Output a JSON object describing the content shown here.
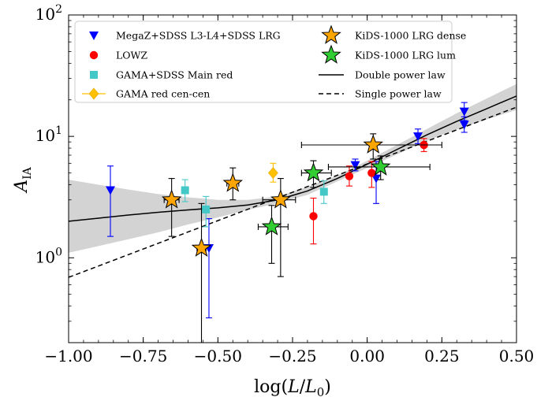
{
  "chart_data": {
    "type": "scatter",
    "title": "",
    "xlabel": "log(L/L_0)",
    "ylabel": "A_IA",
    "xlim": [
      -1.0,
      0.5
    ],
    "ylim": [
      0.2,
      100
    ],
    "yscale": "log",
    "grid": false,
    "legend_position": "top-left",
    "x_ticks": [
      -1.0,
      -0.75,
      -0.5,
      -0.25,
      0.0,
      0.25,
      0.5
    ],
    "x_tick_labels": [
      "−1.00",
      "−0.75",
      "−0.50",
      "−0.25",
      "0.00",
      "0.25",
      "0.50"
    ],
    "y_ticks": [
      {
        "value": 1,
        "base": "10",
        "exp": "0"
      },
      {
        "value": 10,
        "base": "10",
        "exp": "1"
      },
      {
        "value": 100,
        "base": "10",
        "exp": "2"
      }
    ],
    "series": [
      {
        "name": "MegaZ+SDSS L3-L4+SDSS LRG",
        "marker": "triangle-down",
        "color": "#0000ff",
        "points": [
          {
            "x": -0.86,
            "y": 3.6,
            "ylo": 1.5,
            "yhi": 5.7
          },
          {
            "x": -0.53,
            "y": 1.2,
            "ylo": 0.32,
            "yhi": 2.1
          },
          {
            "x": -0.04,
            "y": 5.8,
            "ylo": 5.2,
            "yhi": 6.5
          },
          {
            "x": 0.03,
            "y": 4.5,
            "ylo": 2.8,
            "yhi": 6.2
          },
          {
            "x": 0.17,
            "y": 10.0,
            "ylo": 8.7,
            "yhi": 11.5
          },
          {
            "x": 0.325,
            "y": 16.0,
            "ylo": 13.5,
            "yhi": 19.0
          },
          {
            "x": 0.325,
            "y": 12.5,
            "ylo": 10.8,
            "yhi": 14.5
          }
        ]
      },
      {
        "name": "LOWZ",
        "marker": "circle",
        "color": "#ff0000",
        "points": [
          {
            "x": -0.18,
            "y": 2.2,
            "ylo": 1.3,
            "yhi": 3.1
          },
          {
            "x": -0.06,
            "y": 4.7,
            "ylo": 3.9,
            "yhi": 5.7
          },
          {
            "x": 0.015,
            "y": 5.0,
            "ylo": 3.8,
            "yhi": 6.2
          },
          {
            "x": 0.19,
            "y": 8.5,
            "ylo": 7.5,
            "yhi": 9.6
          }
        ]
      },
      {
        "name": "GAMA+SDSS Main red",
        "marker": "square",
        "color": "#44c7c7",
        "points": [
          {
            "x": -0.61,
            "y": 3.6,
            "ylo": 2.9,
            "yhi": 4.4
          },
          {
            "x": -0.54,
            "y": 2.5,
            "ylo": 1.8,
            "yhi": 3.2
          },
          {
            "x": -0.145,
            "y": 3.5,
            "ylo": 2.8,
            "yhi": 4.3
          }
        ]
      },
      {
        "name": "GAMA red cen-cen",
        "marker": "diamond",
        "color": "#ffc000",
        "points": [
          {
            "x": -0.315,
            "y": 5.0,
            "ylo": 4.2,
            "yhi": 6.0
          }
        ]
      },
      {
        "name": "KiDS-1000 LRG dense",
        "marker": "star",
        "color": "#ffa500",
        "points": [
          {
            "x": -0.655,
            "y": 3.0,
            "ylo": 1.5,
            "yhi": 4.5,
            "xlo": -0.68,
            "xhi": -0.63
          },
          {
            "x": -0.555,
            "y": 1.2,
            "ylo": 0.1,
            "yhi": 2.8,
            "xlo": -0.57,
            "xhi": -0.54
          },
          {
            "x": -0.45,
            "y": 4.1,
            "ylo": 3.0,
            "yhi": 5.5,
            "xlo": -0.47,
            "xhi": -0.43
          },
          {
            "x": -0.29,
            "y": 3.0,
            "ylo": 0.7,
            "yhi": 4.5,
            "xlo": -0.35,
            "xhi": -0.24
          },
          {
            "x": 0.02,
            "y": 8.5,
            "ylo": 6.5,
            "yhi": 10.5,
            "xlo": -0.22,
            "xhi": 0.25
          }
        ]
      },
      {
        "name": "KiDS-1000 LRG lum",
        "marker": "star",
        "color": "#32cd32",
        "points": [
          {
            "x": -0.32,
            "y": 1.8,
            "ylo": 0.9,
            "yhi": 2.7,
            "xlo": -0.365,
            "xhi": -0.265
          },
          {
            "x": -0.18,
            "y": 5.0,
            "ylo": 3.8,
            "yhi": 6.3,
            "xlo": -0.22,
            "xhi": -0.12
          },
          {
            "x": 0.045,
            "y": 5.6,
            "ylo": 4.4,
            "yhi": 6.9,
            "xlo": -0.13,
            "xhi": 0.21
          }
        ]
      }
    ],
    "lines": [
      {
        "name": "Double power law",
        "style": "solid",
        "color": "#000000",
        "x": [
          -1.0,
          -0.9,
          -0.8,
          -0.7,
          -0.6,
          -0.5,
          -0.4,
          -0.3,
          -0.2,
          -0.1,
          0.0,
          0.1,
          0.2,
          0.3,
          0.4,
          0.5
        ],
        "y": [
          2.0,
          2.12,
          2.25,
          2.37,
          2.48,
          2.58,
          2.72,
          3.0,
          3.55,
          4.5,
          5.9,
          7.8,
          10.3,
          13.3,
          16.9,
          21.5
        ]
      },
      {
        "name": "Single power law",
        "style": "dashed",
        "color": "#000000",
        "x": [
          -1.0,
          0.5
        ],
        "y": [
          0.69,
          17.4
        ]
      }
    ],
    "bands": [
      {
        "color": "#d3d3d3",
        "x": [
          -1.0,
          -0.9,
          -0.8,
          -0.7,
          -0.6,
          -0.5,
          -0.4,
          -0.3,
          -0.2,
          -0.1,
          0.0,
          0.1,
          0.2,
          0.3,
          0.4,
          0.5
        ],
        "lower": [
          1.1,
          1.25,
          1.42,
          1.62,
          1.88,
          2.15,
          2.48,
          2.82,
          3.3,
          4.25,
          5.5,
          7.1,
          9.2,
          11.4,
          13.8,
          16.5
        ],
        "upper": [
          4.4,
          4.0,
          3.65,
          3.35,
          3.15,
          3.0,
          3.0,
          3.2,
          3.85,
          4.75,
          6.3,
          8.5,
          11.5,
          15.5,
          20.5,
          27.0
        ]
      }
    ],
    "legend": {
      "left": [
        "MegaZ+SDSS L3-L4+SDSS LRG",
        "LOWZ",
        "GAMA+SDSS Main red",
        "GAMA red cen-cen"
      ],
      "right": [
        "KiDS-1000 LRG dense",
        "KiDS-1000 LRG lum",
        "Double power law",
        "Single power law"
      ]
    }
  }
}
